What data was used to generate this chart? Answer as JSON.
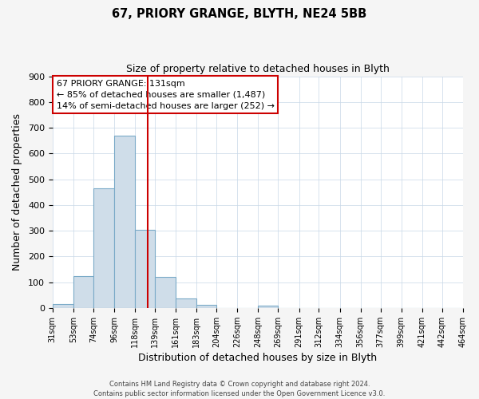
{
  "title": "67, PRIORY GRANGE, BLYTH, NE24 5BB",
  "subtitle": "Size of property relative to detached houses in Blyth",
  "xlabel": "Distribution of detached houses by size in Blyth",
  "ylabel": "Number of detached properties",
  "bin_edges": [
    31,
    53,
    74,
    96,
    118,
    139,
    161,
    183,
    204,
    226,
    248,
    269,
    291,
    312,
    334,
    356,
    377,
    399,
    421,
    442,
    464
  ],
  "bin_heights": [
    15,
    125,
    465,
    670,
    305,
    120,
    37,
    13,
    0,
    0,
    10,
    0,
    0,
    0,
    0,
    0,
    0,
    0,
    0,
    0
  ],
  "bar_color": "#cfdde9",
  "bar_edge_color": "#7aaac8",
  "vline_x": 131,
  "vline_color": "#cc0000",
  "annotation_line1": "67 PRIORY GRANGE: 131sqm",
  "annotation_line2": "← 85% of detached houses are smaller (1,487)",
  "annotation_line3": "14% of semi-detached houses are larger (252) →",
  "annotation_box_color": "#cc0000",
  "ylim": [
    0,
    900
  ],
  "yticks": [
    0,
    100,
    200,
    300,
    400,
    500,
    600,
    700,
    800,
    900
  ],
  "footer_text": "Contains HM Land Registry data © Crown copyright and database right 2024.\nContains public sector information licensed under the Open Government Licence v3.0.",
  "bg_color": "#f5f5f5",
  "plot_bg_color": "#ffffff",
  "grid_color": "#c8d8e8"
}
